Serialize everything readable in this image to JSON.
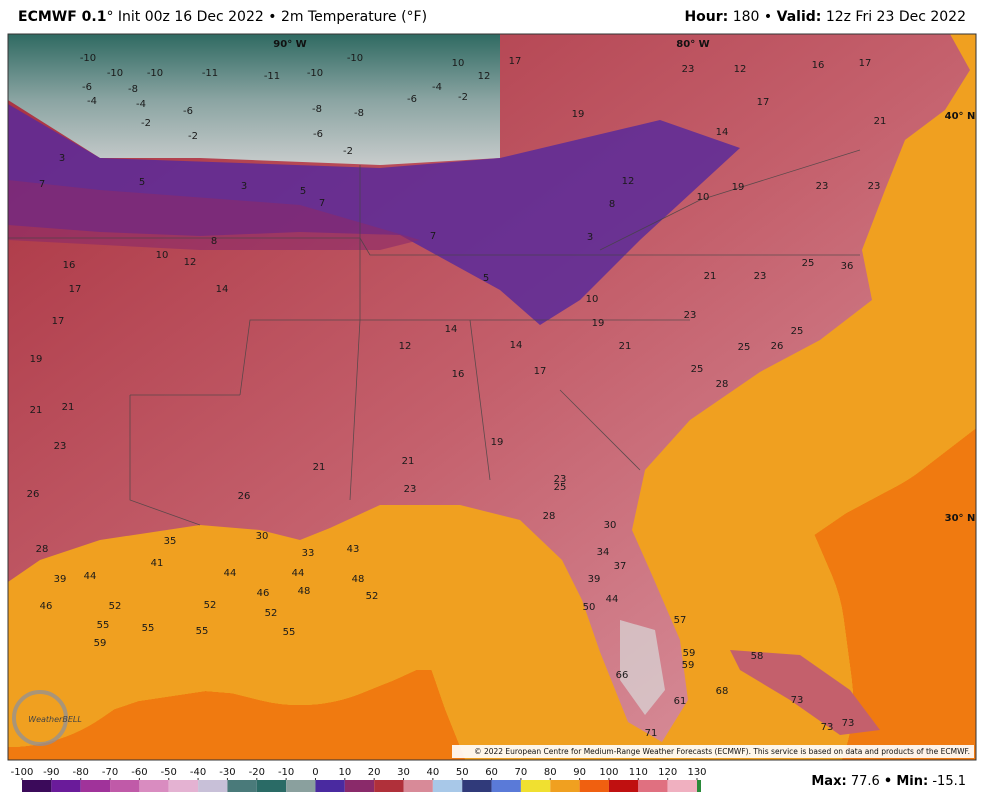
{
  "header": {
    "model": "ECMWF 0.1",
    "details": "° Init 00z 16 Dec 2022 • 2m Temperature (°F)",
    "hour_label": "Hour:",
    "hour": "180",
    "separator": "•",
    "valid_label": "Valid:",
    "valid": "12z Fri 23 Dec 2022"
  },
  "map": {
    "grid_labels": [
      "90° W",
      "80° W",
      "40° N",
      "30° N"
    ],
    "labels": [
      -10,
      -10,
      -10,
      -8,
      -6,
      -4,
      -4,
      -2,
      -2,
      -6,
      -11,
      -11,
      -10,
      -8,
      -6,
      -2,
      -10,
      -8,
      -6,
      -4,
      -2,
      10,
      12,
      3,
      7,
      5,
      3,
      5,
      7,
      8,
      10,
      12,
      14,
      16,
      17,
      17,
      19,
      21,
      21,
      23,
      26,
      28,
      39,
      44,
      46,
      52,
      55,
      59,
      55,
      55,
      52,
      44,
      41,
      35,
      46,
      48,
      44,
      48,
      52,
      43,
      55,
      52,
      33,
      30,
      26,
      21,
      21,
      23,
      12,
      14,
      16,
      17,
      19,
      23,
      25,
      28,
      30,
      34,
      37,
      39,
      44,
      50,
      57,
      59,
      59,
      61,
      66,
      71,
      68,
      58,
      73,
      73,
      73,
      19,
      17,
      23,
      16,
      17,
      21,
      23,
      23,
      19,
      21,
      23,
      25,
      26,
      25,
      23,
      19,
      21,
      14,
      10,
      5,
      7,
      3,
      8,
      12,
      10,
      14,
      12,
      17,
      28,
      25,
      25,
      36
    ],
    "copyright": "© 2022 European Centre for Medium-Range Weather Forecasts (ECMWF). This service is based on data and products of the ECMWF.",
    "logo": "WeatherBELL"
  },
  "colorbar": {
    "ticks": [
      -100,
      -90,
      -80,
      -70,
      -60,
      -50,
      -40,
      -30,
      -20,
      -10,
      0,
      10,
      20,
      30,
      40,
      50,
      60,
      70,
      80,
      90,
      100,
      110,
      120,
      130
    ],
    "colors": [
      "#3b0a5a",
      "#6a1b9a",
      "#a0339a",
      "#c05aa8",
      "#d98cc0",
      "#e4b2d2",
      "#c8c0d8",
      "#4a7a7a",
      "#2a6b66",
      "#8aa09e",
      "#4a2aa0",
      "#8a2a6a",
      "#b0303a",
      "#d88a98",
      "#a8c8e8",
      "#303a7a",
      "#5a7ad8",
      "#f0e030",
      "#f0a020",
      "#f06010",
      "#c01010",
      "#e07080",
      "#f0b0c0"
    ]
  },
  "footer": {
    "max_label": "Max:",
    "max": "77.6",
    "separator": "•",
    "min_label": "Min:",
    "min": "-15.1"
  }
}
